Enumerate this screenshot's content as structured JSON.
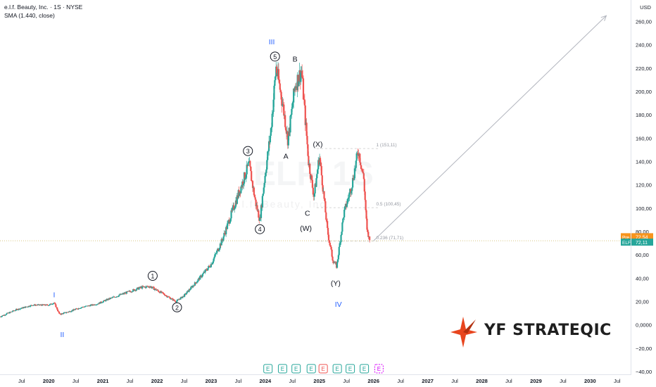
{
  "header": {
    "title": "e.l.f. Beauty, Inc. · 1S · NYSE",
    "indicator": "SMA (1.440, close)"
  },
  "watermark": {
    "symbol": "ELF, 1S",
    "name": "e.l.f. Beauty, Inc."
  },
  "currency": "USD",
  "brand": {
    "logo_text": "YF STRATEQIC",
    "accent": "#e8451e"
  },
  "colors": {
    "up": "#26a69a",
    "down": "#ef5350",
    "wave_blue": "#2962ff",
    "pre": "#f7941d",
    "last": "#26a69a",
    "fib": "#c8c8c8",
    "arrow": "#b2b5be"
  },
  "chart_data": {
    "type": "candlestick",
    "ylim": [
      -40,
      270
    ],
    "y_ticks": [
      -40,
      -20,
      0,
      20,
      40,
      60,
      80,
      100,
      120,
      140,
      160,
      180,
      200,
      220,
      240,
      260
    ],
    "y_tick_labels": [
      "−40,00",
      "−20,00",
      "0,0000",
      "20,00",
      "40,00",
      "60,00",
      "80,00",
      "100,00",
      "120,00",
      "140,00",
      "160,00",
      "180,00",
      "200,00",
      "220,00",
      "240,00",
      "260,00"
    ],
    "x_ticks": [
      2019.5,
      2020,
      2020.5,
      2021,
      2021.5,
      2022,
      2022.5,
      2023,
      2023.5,
      2024,
      2024.5,
      2025,
      2025.5,
      2026,
      2026.5,
      2027,
      2027.5,
      2028,
      2028.5,
      2029,
      2029.5,
      2030,
      2030.5
    ],
    "x_tick_labels": [
      "Jul",
      "2020",
      "Jul",
      "2021",
      "Jul",
      "2022",
      "Jul",
      "2023",
      "Jul",
      "2024",
      "Jul",
      "2025",
      "Jul",
      "2026",
      "Jul",
      "2027",
      "Jul",
      "2028",
      "Jul",
      "2029",
      "Jul",
      "2030",
      "Jul"
    ],
    "xlim": [
      2019.1,
      2030.75
    ],
    "price_path": [
      [
        2019.1,
        7
      ],
      [
        2019.4,
        13
      ],
      [
        2019.7,
        17
      ],
      [
        2020.0,
        17
      ],
      [
        2020.1,
        19
      ],
      [
        2020.2,
        9
      ],
      [
        2020.35,
        11
      ],
      [
        2020.6,
        15
      ],
      [
        2020.9,
        18
      ],
      [
        2021.1,
        22
      ],
      [
        2021.4,
        27
      ],
      [
        2021.7,
        32
      ],
      [
        2021.87,
        33
      ],
      [
        2022.1,
        27
      ],
      [
        2022.35,
        20
      ],
      [
        2022.5,
        25
      ],
      [
        2022.75,
        38
      ],
      [
        2023.0,
        52
      ],
      [
        2023.2,
        72
      ],
      [
        2023.45,
        105
      ],
      [
        2023.7,
        138
      ],
      [
        2023.82,
        105
      ],
      [
        2023.9,
        90
      ],
      [
        2024.0,
        130
      ],
      [
        2024.1,
        165
      ],
      [
        2024.2,
        221
      ],
      [
        2024.32,
        190
      ],
      [
        2024.42,
        158
      ],
      [
        2024.55,
        205
      ],
      [
        2024.67,
        218
      ],
      [
        2024.8,
        140
      ],
      [
        2024.9,
        110
      ],
      [
        2025.0,
        145
      ],
      [
        2025.06,
        120
      ],
      [
        2025.15,
        80
      ],
      [
        2025.25,
        55
      ],
      [
        2025.32,
        50
      ],
      [
        2025.45,
        95
      ],
      [
        2025.6,
        120
      ],
      [
        2025.72,
        150
      ],
      [
        2025.82,
        125
      ],
      [
        2025.88,
        80
      ],
      [
        2025.93,
        72.11
      ]
    ],
    "last_price": 72.11,
    "pre_price": 72.54,
    "last_label": "ELF",
    "last_value_label": "72,11",
    "pre_label": "Pre",
    "pre_value_label": "72,54",
    "fib_levels": [
      {
        "value": 151.11,
        "label": "1 (151,11)"
      },
      {
        "value": 100.45,
        "label": "0.5 (100,45)"
      },
      {
        "value": 71.71,
        "label": "0.236 (71,71)"
      }
    ],
    "projection": {
      "from": [
        2026.0,
        72
      ],
      "to": [
        2030.3,
        265
      ]
    },
    "wave_labels": [
      {
        "text": "I",
        "x": 2020.1,
        "y": 26,
        "style": "blue"
      },
      {
        "text": "II",
        "x": 2020.25,
        "y": -8,
        "style": "blue"
      },
      {
        "text": "1",
        "x": 2021.92,
        "y": 42,
        "style": "circle"
      },
      {
        "text": "2",
        "x": 2022.37,
        "y": 15,
        "style": "circle"
      },
      {
        "text": "3",
        "x": 2023.68,
        "y": 149,
        "style": "circle"
      },
      {
        "text": "4",
        "x": 2023.9,
        "y": 82,
        "style": "circle"
      },
      {
        "text": "III",
        "x": 2024.12,
        "y": 243,
        "style": "blue"
      },
      {
        "text": "5",
        "x": 2024.18,
        "y": 230,
        "style": "circle"
      },
      {
        "text": "B",
        "x": 2024.55,
        "y": 228,
        "style": "plain"
      },
      {
        "text": "A",
        "x": 2024.38,
        "y": 145,
        "style": "plain"
      },
      {
        "text": "(X)",
        "x": 2024.97,
        "y": 155,
        "style": "plain"
      },
      {
        "text": "C",
        "x": 2024.78,
        "y": 96,
        "style": "plain"
      },
      {
        "text": "(W)",
        "x": 2024.75,
        "y": 83,
        "style": "plain"
      },
      {
        "text": "(Y)",
        "x": 2025.3,
        "y": 36,
        "style": "plain"
      },
      {
        "text": "IV",
        "x": 2025.35,
        "y": 18,
        "style": "blue"
      }
    ],
    "earnings": [
      {
        "x": 2024.05,
        "type": "E",
        "kind": "green"
      },
      {
        "x": 2024.32,
        "type": "E",
        "kind": "green"
      },
      {
        "x": 2024.57,
        "type": "E",
        "kind": "green"
      },
      {
        "x": 2024.85,
        "type": "E",
        "kind": "green"
      },
      {
        "x": 2025.07,
        "type": "E",
        "kind": "red"
      },
      {
        "x": 2025.33,
        "type": "E",
        "kind": "green"
      },
      {
        "x": 2025.57,
        "type": "E",
        "kind": "green"
      },
      {
        "x": 2025.83,
        "type": "E",
        "kind": "green"
      },
      {
        "x": 2026.1,
        "type": "E",
        "kind": "future"
      }
    ]
  }
}
